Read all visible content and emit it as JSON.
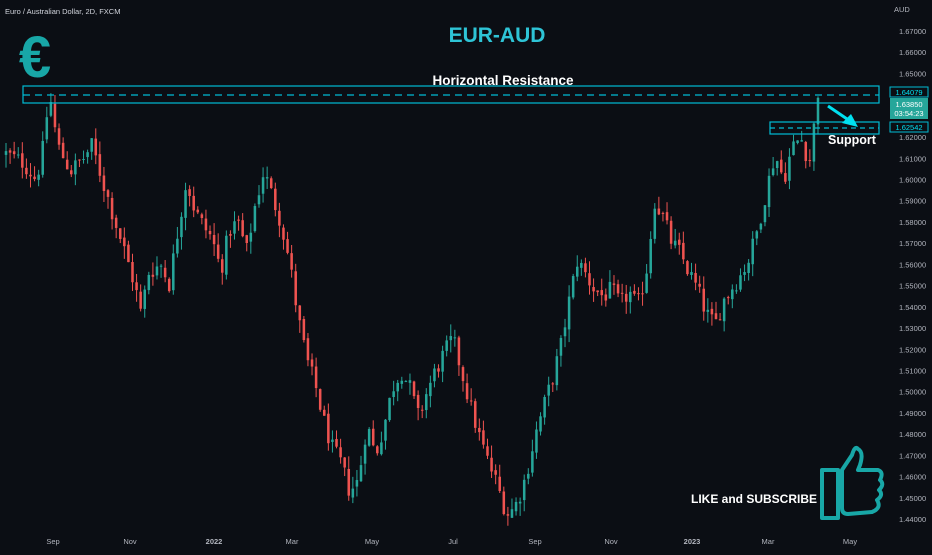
{
  "symbol_label": "Euro / Australian Dollar, 2D, FXCM",
  "currency_label": "AUD",
  "headline": "EUR-AUD",
  "euro_symbol": "€",
  "resistance_label": "Horizontal Resistance",
  "support_label": "Support",
  "cta_label": "LIKE and SUBSCRIBE",
  "colors": {
    "background": "#0b0e14",
    "up_candle": "#26a69a",
    "down_candle": "#ef5350",
    "zone": "#00bcd4",
    "headline": "#2ec4d6",
    "axis_text": "#b2b5be",
    "last_price_badge": "#26a69a"
  },
  "price_tags": {
    "resistance": "1.64079",
    "last_price": "1.63850",
    "countdown": "03:54:23",
    "support": "1.62542"
  },
  "chart_data": {
    "type": "candlestick",
    "title": "EUR-AUD",
    "ylabel": "AUD",
    "ylim": [
      1.435,
      1.6745
    ],
    "yticks": [
      "1.67000",
      "1.66000",
      "1.65000",
      "1.64000",
      "1.63000",
      "1.62000",
      "1.61000",
      "1.60000",
      "1.59000",
      "1.58000",
      "1.57000",
      "1.56000",
      "1.55000",
      "1.54000",
      "1.53000",
      "1.52000",
      "1.51000",
      "1.50000",
      "1.49000",
      "1.48000",
      "1.47000",
      "1.46000",
      "1.45000",
      "1.44000"
    ],
    "xticks": [
      "Sep",
      "Nov",
      "2022",
      "Mar",
      "May",
      "Jul",
      "Sep",
      "Nov",
      "2023",
      "Mar",
      "May"
    ],
    "grid": false,
    "zones": [
      {
        "name": "Horizontal Resistance",
        "low": 1.6388,
        "high": 1.646,
        "level": 1.64079
      },
      {
        "name": "Support",
        "low": 1.6226,
        "high": 1.6282,
        "level": 1.62542
      }
    ],
    "price_path": [
      {
        "t": 0,
        "p": 1.612
      },
      {
        "t": 8,
        "p": 1.608
      },
      {
        "t": 14,
        "p": 1.6
      },
      {
        "t": 18,
        "p": 1.618
      },
      {
        "t": 20,
        "p": 1.642
      },
      {
        "t": 24,
        "p": 1.616
      },
      {
        "t": 30,
        "p": 1.604
      },
      {
        "t": 36,
        "p": 1.61
      },
      {
        "t": 40,
        "p": 1.616
      },
      {
        "t": 46,
        "p": 1.596
      },
      {
        "t": 50,
        "p": 1.583
      },
      {
        "t": 55,
        "p": 1.567
      },
      {
        "t": 60,
        "p": 1.55
      },
      {
        "t": 63,
        "p": 1.536
      },
      {
        "t": 66,
        "p": 1.556
      },
      {
        "t": 72,
        "p": 1.56
      },
      {
        "t": 76,
        "p": 1.551
      },
      {
        "t": 80,
        "p": 1.576
      },
      {
        "t": 84,
        "p": 1.6
      },
      {
        "t": 88,
        "p": 1.585
      },
      {
        "t": 92,
        "p": 1.578
      },
      {
        "t": 96,
        "p": 1.572
      },
      {
        "t": 100,
        "p": 1.557
      },
      {
        "t": 104,
        "p": 1.576
      },
      {
        "t": 108,
        "p": 1.58
      },
      {
        "t": 112,
        "p": 1.566
      },
      {
        "t": 116,
        "p": 1.588
      },
      {
        "t": 120,
        "p": 1.604
      },
      {
        "t": 124,
        "p": 1.592
      },
      {
        "t": 128,
        "p": 1.58
      },
      {
        "t": 132,
        "p": 1.561
      },
      {
        "t": 136,
        "p": 1.535
      },
      {
        "t": 140,
        "p": 1.515
      },
      {
        "t": 144,
        "p": 1.503
      },
      {
        "t": 148,
        "p": 1.486
      },
      {
        "t": 152,
        "p": 1.473
      },
      {
        "t": 156,
        "p": 1.466
      },
      {
        "t": 160,
        "p": 1.453
      },
      {
        "t": 164,
        "p": 1.458
      },
      {
        "t": 168,
        "p": 1.485
      },
      {
        "t": 172,
        "p": 1.47
      },
      {
        "t": 176,
        "p": 1.484
      },
      {
        "t": 180,
        "p": 1.502
      },
      {
        "t": 184,
        "p": 1.51
      },
      {
        "t": 188,
        "p": 1.502
      },
      {
        "t": 192,
        "p": 1.488
      },
      {
        "t": 196,
        "p": 1.5
      },
      {
        "t": 200,
        "p": 1.51
      },
      {
        "t": 204,
        "p": 1.518
      },
      {
        "t": 208,
        "p": 1.525
      },
      {
        "t": 212,
        "p": 1.51
      },
      {
        "t": 216,
        "p": 1.494
      },
      {
        "t": 220,
        "p": 1.48
      },
      {
        "t": 224,
        "p": 1.468
      },
      {
        "t": 228,
        "p": 1.458
      },
      {
        "t": 232,
        "p": 1.446
      },
      {
        "t": 234,
        "p": 1.442
      },
      {
        "t": 238,
        "p": 1.448
      },
      {
        "t": 242,
        "p": 1.46
      },
      {
        "t": 246,
        "p": 1.478
      },
      {
        "t": 250,
        "p": 1.492
      },
      {
        "t": 254,
        "p": 1.505
      },
      {
        "t": 258,
        "p": 1.52
      },
      {
        "t": 262,
        "p": 1.542
      },
      {
        "t": 266,
        "p": 1.562
      },
      {
        "t": 270,
        "p": 1.555
      },
      {
        "t": 274,
        "p": 1.548
      },
      {
        "t": 278,
        "p": 1.545
      },
      {
        "t": 282,
        "p": 1.548
      },
      {
        "t": 286,
        "p": 1.541
      },
      {
        "t": 290,
        "p": 1.547
      },
      {
        "t": 294,
        "p": 1.54
      },
      {
        "t": 298,
        "p": 1.556
      },
      {
        "t": 302,
        "p": 1.59
      },
      {
        "t": 306,
        "p": 1.582
      },
      {
        "t": 310,
        "p": 1.57
      },
      {
        "t": 314,
        "p": 1.565
      },
      {
        "t": 318,
        "p": 1.556
      },
      {
        "t": 322,
        "p": 1.548
      },
      {
        "t": 326,
        "p": 1.537
      },
      {
        "t": 330,
        "p": 1.531
      },
      {
        "t": 334,
        "p": 1.543
      },
      {
        "t": 338,
        "p": 1.549
      },
      {
        "t": 342,
        "p": 1.555
      },
      {
        "t": 346,
        "p": 1.563
      },
      {
        "t": 350,
        "p": 1.577
      },
      {
        "t": 354,
        "p": 1.595
      },
      {
        "t": 358,
        "p": 1.612
      },
      {
        "t": 362,
        "p": 1.6
      },
      {
        "t": 366,
        "p": 1.615
      },
      {
        "t": 370,
        "p": 1.62
      },
      {
        "t": 374,
        "p": 1.608
      },
      {
        "t": 376,
        "p": 1.624
      },
      {
        "t": 378,
        "p": 1.639
      }
    ],
    "candle_count": 200,
    "last_price": 1.6385
  },
  "cta_position": "bottom-right"
}
